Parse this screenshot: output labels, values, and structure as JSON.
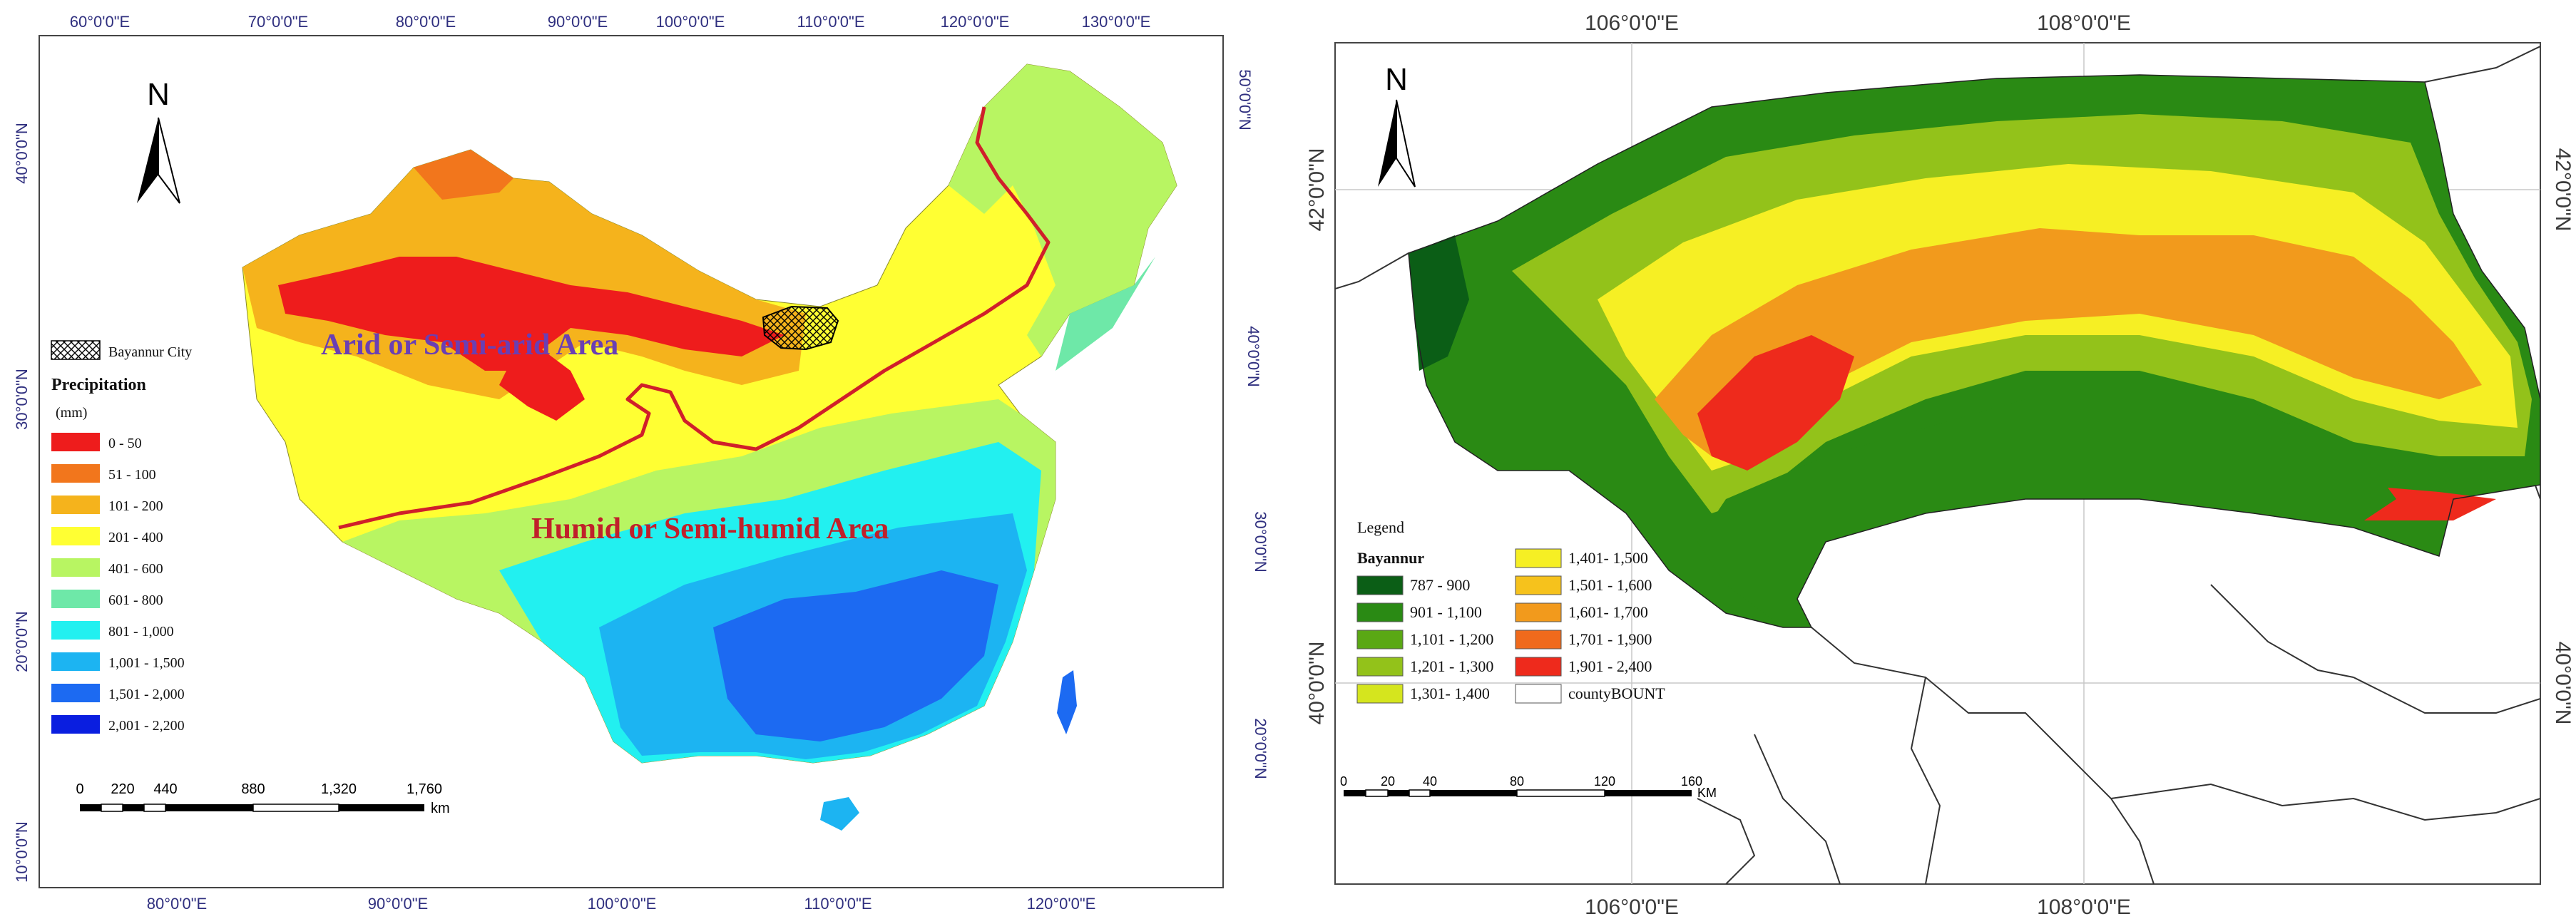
{
  "left_map": {
    "coords_top": [
      "60°0'0\"E",
      "70°0'0\"E",
      "80°0'0\"E",
      "90°0'0\"E",
      "100°0'0\"E",
      "110°0'0\"E",
      "120°0'0\"E",
      "130°0'0\"E"
    ],
    "coords_bottom": [
      "80°0'0\"E",
      "90°0'0\"E",
      "100°0'0\"E",
      "110°0'0\"E",
      "120°0'0\"E"
    ],
    "coords_left": [
      "40°0'0\"N",
      "30°0'0\"N",
      "20°0'0\"N",
      "10°0'0\"N"
    ],
    "coords_right": [
      "50°0'0\"N",
      "40°0'0\"N",
      "30°0'0\"N",
      "20°0'0\"N"
    ],
    "north": "N",
    "region_arid": "Arid or Semi-arid Area",
    "region_humid": "Humid or Semi-humid Area",
    "city_label": "Bayannur City",
    "legend_title": "Precipitation",
    "legend_unit": "(mm)",
    "legend_items": [
      {
        "label": "0 - 50",
        "color": "#ee1c1c"
      },
      {
        "label": "51 - 100",
        "color": "#f2761c"
      },
      {
        "label": "101 - 200",
        "color": "#f5b31c"
      },
      {
        "label": "201 - 400",
        "color": "#ffff33"
      },
      {
        "label": "401 - 600",
        "color": "#b8f562"
      },
      {
        "label": "601 - 800",
        "color": "#6ee8a8"
      },
      {
        "label": "801 - 1,000",
        "color": "#22f0f0"
      },
      {
        "label": "1,001 - 1,500",
        "color": "#1cb4f2"
      },
      {
        "label": "1,501 - 2,000",
        "color": "#1c6af2"
      },
      {
        "label": "2,001 - 2,200",
        "color": "#0a1ee0"
      }
    ],
    "scale_ticks": [
      "0",
      "220",
      "440",
      "880",
      "1,320",
      "1,760"
    ],
    "scale_unit": "km"
  },
  "right_map": {
    "coords_top": [
      "106°0'0\"E",
      "108°0'0\"E"
    ],
    "coords_bottom": [
      "106°0'0\"E",
      "108°0'0\"E"
    ],
    "coords_left": [
      "42°0'0\"N",
      "40°0'0\"N"
    ],
    "coords_right": [
      "42°0'0\"N",
      "40°0'0\"N"
    ],
    "north": "N",
    "legend_title": "Legend",
    "legend_group": "Bayannur",
    "legend_items": [
      {
        "label": "787 - 900",
        "color": "#0b5e16"
      },
      {
        "label": "901 - 1,100",
        "color": "#2a8a14"
      },
      {
        "label": "1,101 - 1,200",
        "color": "#5aa814"
      },
      {
        "label": "1,201 - 1,300",
        "color": "#93c21a"
      },
      {
        "label": "1,301- 1,400",
        "color": "#d5e51e"
      },
      {
        "label": "1,401- 1,500",
        "color": "#f6ef24"
      },
      {
        "label": "1,501 - 1,600",
        "color": "#f6c21c"
      },
      {
        "label": "1,601- 1,700",
        "color": "#f29a1c"
      },
      {
        "label": "1,701 - 1,900",
        "color": "#f06a1c"
      },
      {
        "label": "1,901 - 2,400",
        "color": "#ee2a1c"
      },
      {
        "label": "countyBOUNT",
        "color": "#ffffff"
      }
    ],
    "scale_ticks": [
      "0",
      "20",
      "40",
      "80",
      "120",
      "160"
    ],
    "scale_unit": "KM"
  }
}
